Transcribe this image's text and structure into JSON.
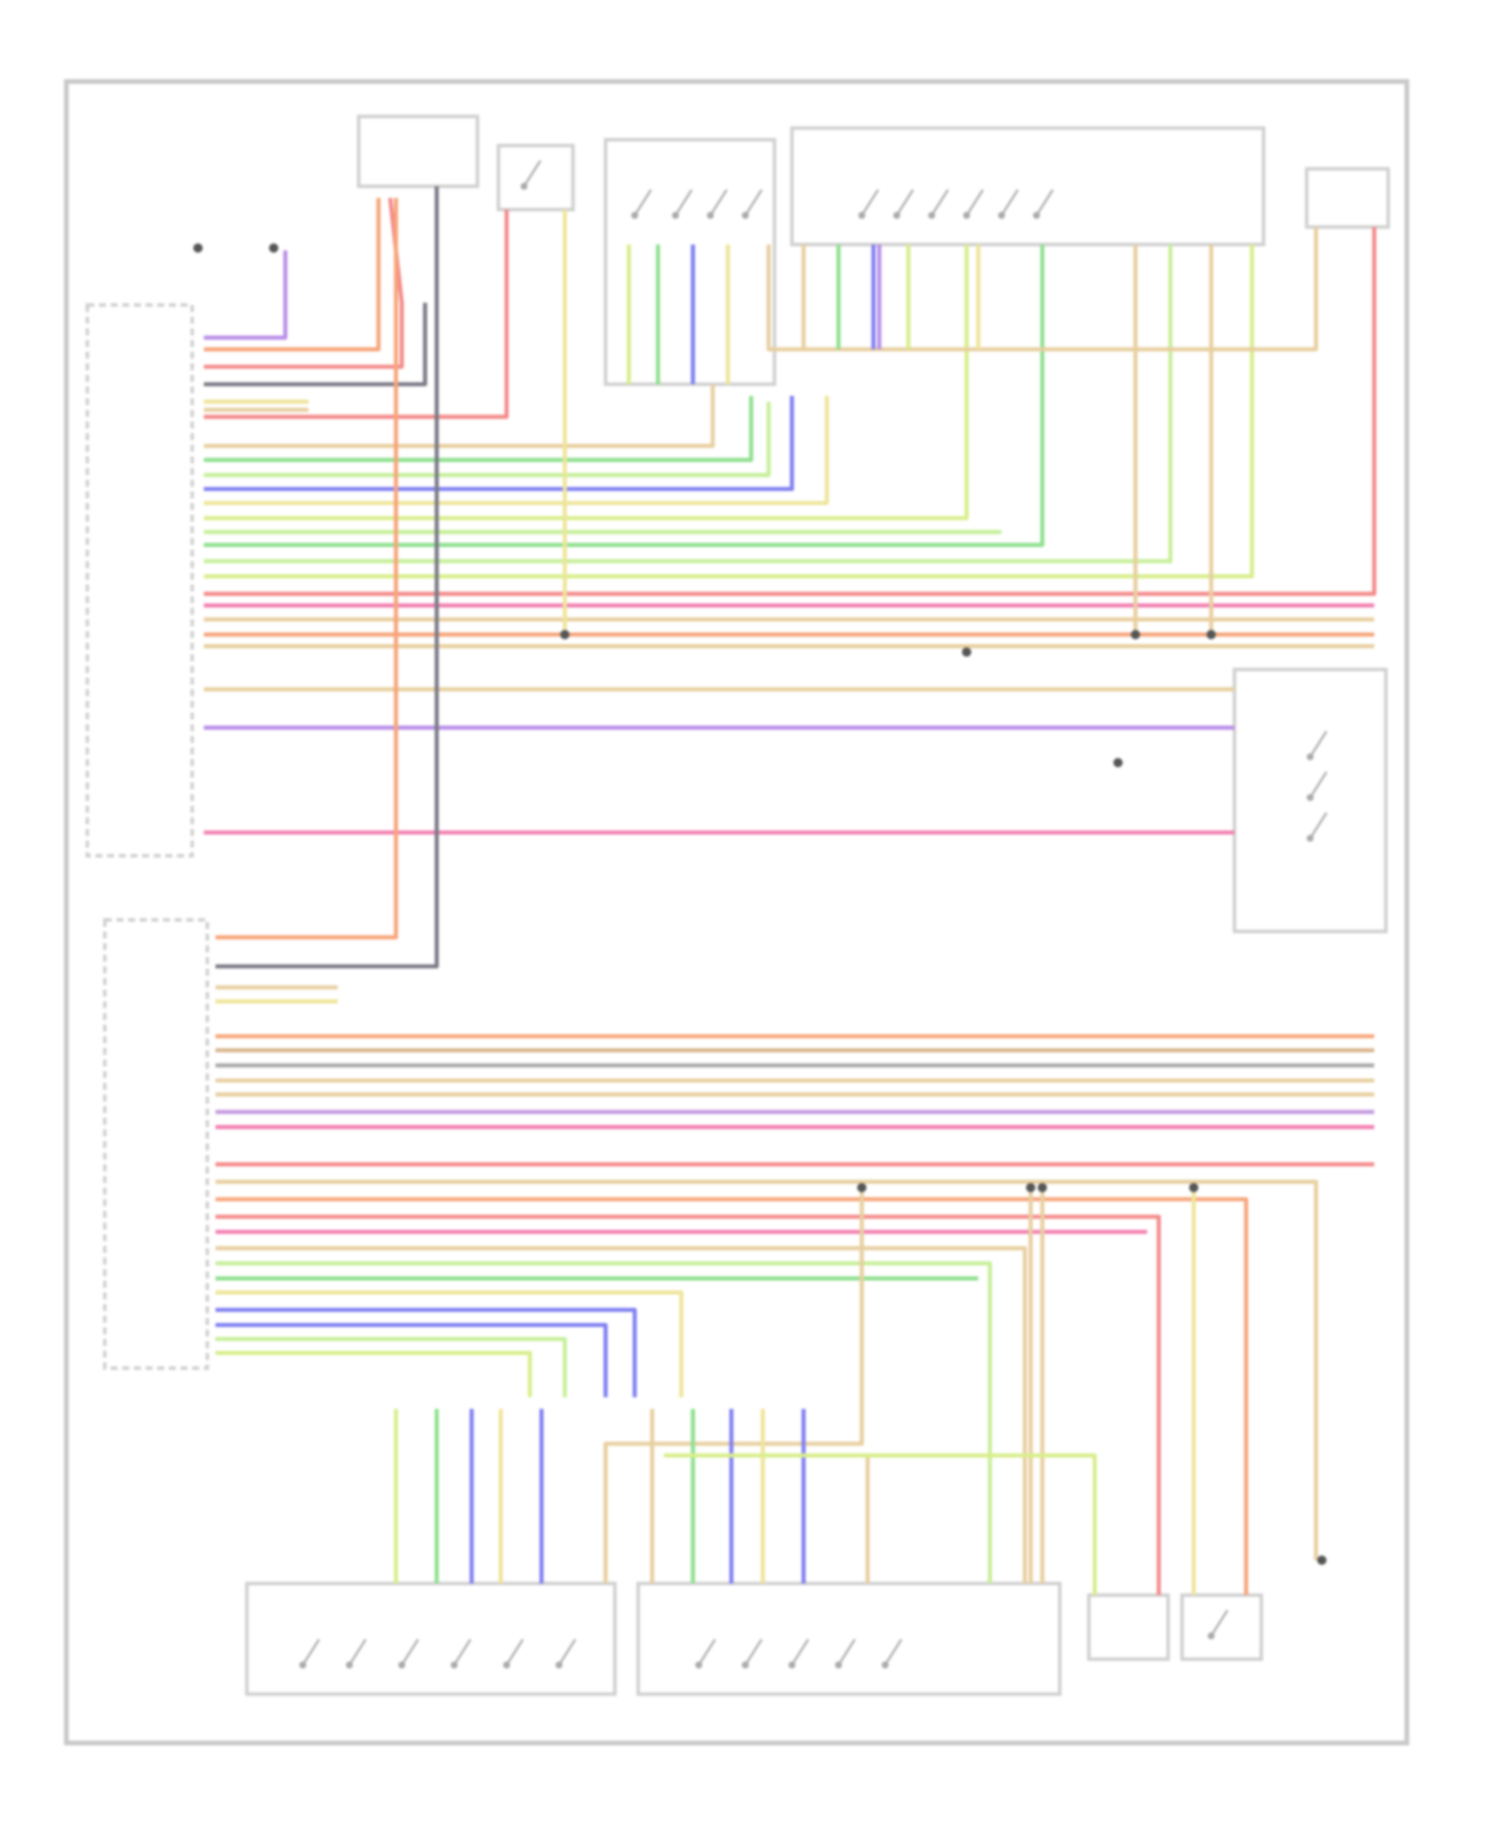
{
  "diagram": {
    "type": "wiring-diagram",
    "text_legible": false,
    "colors": {
      "frame": "#c8c8c8",
      "component": "#d0d0d0",
      "ground": "#8a8a8a"
    },
    "wire_colors": {
      "orange": "#f7a57a",
      "red": "#f48a8a",
      "pink": "#f27fb0",
      "purple": "#b98ee8",
      "violet": "#c59be0",
      "blue": "#7f7ff2",
      "green": "#8fe08f",
      "lightgreen": "#c7ef9a",
      "lime": "#d8ee8c",
      "yellow": "#eee59a",
      "tan": "#e8cfa0",
      "brown": "#d8b48a",
      "gray": "#a8a8a8",
      "darkgray": "#7a7a86"
    }
  }
}
